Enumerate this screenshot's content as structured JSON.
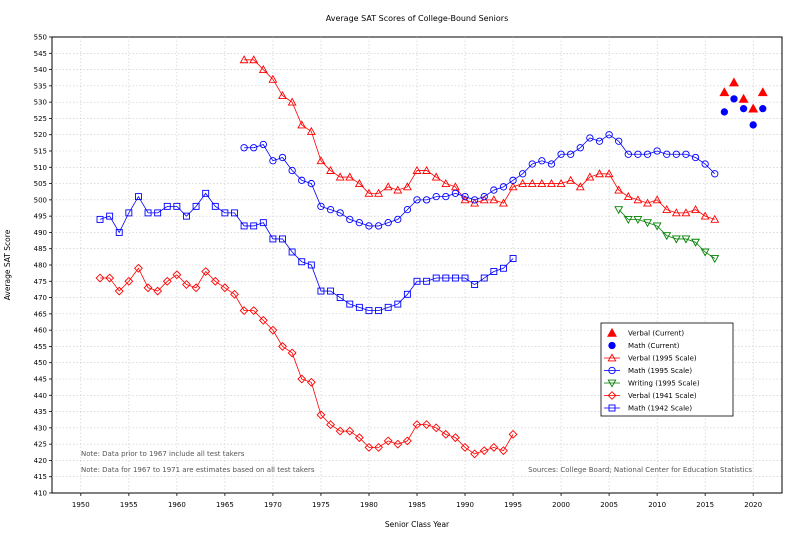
{
  "chart_data": {
    "type": "line",
    "title": "Average SAT Scores of College-Bound Seniors",
    "xlabel": "Senior Class Year",
    "ylabel": "Average SAT Score",
    "xlim": [
      1947,
      2023
    ],
    "ylim": [
      410,
      550
    ],
    "xticks": [
      1950,
      1955,
      1960,
      1965,
      1970,
      1975,
      1980,
      1985,
      1990,
      1995,
      2000,
      2005,
      2010,
      2015,
      2020
    ],
    "yticks": [
      410,
      415,
      420,
      425,
      430,
      435,
      440,
      445,
      450,
      455,
      460,
      465,
      470,
      475,
      480,
      485,
      490,
      495,
      500,
      505,
      510,
      515,
      520,
      525,
      530,
      535,
      540,
      545,
      550
    ],
    "grid": true,
    "legend_position": "right",
    "notes": [
      "Note: Data prior to 1967 include all test takers",
      "Note: Data for 1967 to 1971 are estimates based on all test takers"
    ],
    "sources": "Sources: College Board; National Center for Education Statistics",
    "series": [
      {
        "name": "Verbal (Current)",
        "color": "#ff0000",
        "marker": "filled-triangle",
        "line": false,
        "x": [
          2017,
          2018,
          2019,
          2020,
          2021
        ],
        "y": [
          533,
          536,
          531,
          528,
          533
        ]
      },
      {
        "name": "Math (Current)",
        "color": "#0000ff",
        "marker": "filled-circle",
        "line": false,
        "x": [
          2017,
          2018,
          2019,
          2020,
          2021
        ],
        "y": [
          527,
          531,
          528,
          523,
          528
        ]
      },
      {
        "name": "Verbal (1995 Scale)",
        "color": "#ff0000",
        "marker": "triangle",
        "line": true,
        "x": [
          1967,
          1968,
          1969,
          1970,
          1971,
          1972,
          1973,
          1974,
          1975,
          1976,
          1977,
          1978,
          1979,
          1980,
          1981,
          1982,
          1983,
          1984,
          1985,
          1986,
          1987,
          1988,
          1989,
          1990,
          1991,
          1992,
          1993,
          1994,
          1995,
          1996,
          1997,
          1998,
          1999,
          2000,
          2001,
          2002,
          2003,
          2004,
          2005,
          2006,
          2007,
          2008,
          2009,
          2010,
          2011,
          2012,
          2013,
          2014,
          2015,
          2016
        ],
        "y": [
          543,
          543,
          540,
          537,
          532,
          530,
          523,
          521,
          512,
          509,
          507,
          507,
          505,
          502,
          502,
          504,
          503,
          504,
          509,
          509,
          507,
          505,
          504,
          500,
          499,
          500,
          500,
          499,
          504,
          505,
          505,
          505,
          505,
          505,
          506,
          504,
          507,
          508,
          508,
          503,
          501,
          500,
          499,
          500,
          497,
          496,
          496,
          497,
          495,
          494
        ]
      },
      {
        "name": "Math (1995 Scale)",
        "color": "#0000ff",
        "marker": "circle",
        "line": true,
        "x": [
          1967,
          1968,
          1969,
          1970,
          1971,
          1972,
          1973,
          1974,
          1975,
          1976,
          1977,
          1978,
          1979,
          1980,
          1981,
          1982,
          1983,
          1984,
          1985,
          1986,
          1987,
          1988,
          1989,
          1990,
          1991,
          1992,
          1993,
          1994,
          1995,
          1996,
          1997,
          1998,
          1999,
          2000,
          2001,
          2002,
          2003,
          2004,
          2005,
          2006,
          2007,
          2008,
          2009,
          2010,
          2011,
          2012,
          2013,
          2014,
          2015,
          2016
        ],
        "y": [
          516,
          516,
          517,
          512,
          513,
          509,
          506,
          505,
          498,
          497,
          496,
          494,
          493,
          492,
          492,
          493,
          494,
          497,
          500,
          500,
          501,
          501,
          502,
          501,
          500,
          501,
          503,
          504,
          506,
          508,
          511,
          512,
          511,
          514,
          514,
          516,
          519,
          518,
          520,
          518,
          514,
          514,
          514,
          515,
          514,
          514,
          514,
          513,
          511,
          508
        ]
      },
      {
        "name": "Writing (1995 Scale)",
        "color": "#008000",
        "marker": "inverted-triangle",
        "line": true,
        "x": [
          2006,
          2007,
          2008,
          2009,
          2010,
          2011,
          2012,
          2013,
          2014,
          2015,
          2016
        ],
        "y": [
          497,
          494,
          494,
          493,
          492,
          489,
          488,
          488,
          487,
          484,
          482
        ]
      },
      {
        "name": "Verbal (1941 Scale)",
        "color": "#ff0000",
        "marker": "diamond",
        "line": true,
        "x": [
          1952,
          1953,
          1954,
          1955,
          1956,
          1957,
          1958,
          1959,
          1960,
          1961,
          1962,
          1963,
          1964,
          1965,
          1966,
          1967,
          1968,
          1969,
          1970,
          1971,
          1972,
          1973,
          1974,
          1975,
          1976,
          1977,
          1978,
          1979,
          1980,
          1981,
          1982,
          1983,
          1984,
          1985,
          1986,
          1987,
          1988,
          1989,
          1990,
          1991,
          1992,
          1993,
          1994,
          1995
        ],
        "y": [
          476,
          476,
          472,
          475,
          479,
          473,
          472,
          475,
          477,
          474,
          473,
          478,
          475,
          473,
          471,
          466,
          466,
          463,
          460,
          455,
          453,
          445,
          444,
          434,
          431,
          429,
          429,
          427,
          424,
          424,
          426,
          425,
          426,
          431,
          431,
          430,
          428,
          427,
          424,
          422,
          423,
          424,
          423,
          428
        ]
      },
      {
        "name": "Math (1942 Scale)",
        "color": "#0000ff",
        "marker": "square",
        "line": true,
        "x": [
          1952,
          1953,
          1954,
          1955,
          1956,
          1957,
          1958,
          1959,
          1960,
          1961,
          1962,
          1963,
          1964,
          1965,
          1966,
          1967,
          1968,
          1969,
          1970,
          1971,
          1972,
          1973,
          1974,
          1975,
          1976,
          1977,
          1978,
          1979,
          1980,
          1981,
          1982,
          1983,
          1984,
          1985,
          1986,
          1987,
          1988,
          1989,
          1990,
          1991,
          1992,
          1993,
          1994,
          1995
        ],
        "y": [
          494,
          495,
          490,
          496,
          501,
          496,
          496,
          498,
          498,
          495,
          498,
          502,
          498,
          496,
          496,
          492,
          492,
          493,
          488,
          488,
          484,
          481,
          480,
          472,
          472,
          470,
          468,
          467,
          466,
          466,
          467,
          468,
          471,
          475,
          475,
          476,
          476,
          476,
          476,
          474,
          476,
          478,
          479,
          482
        ]
      }
    ]
  }
}
